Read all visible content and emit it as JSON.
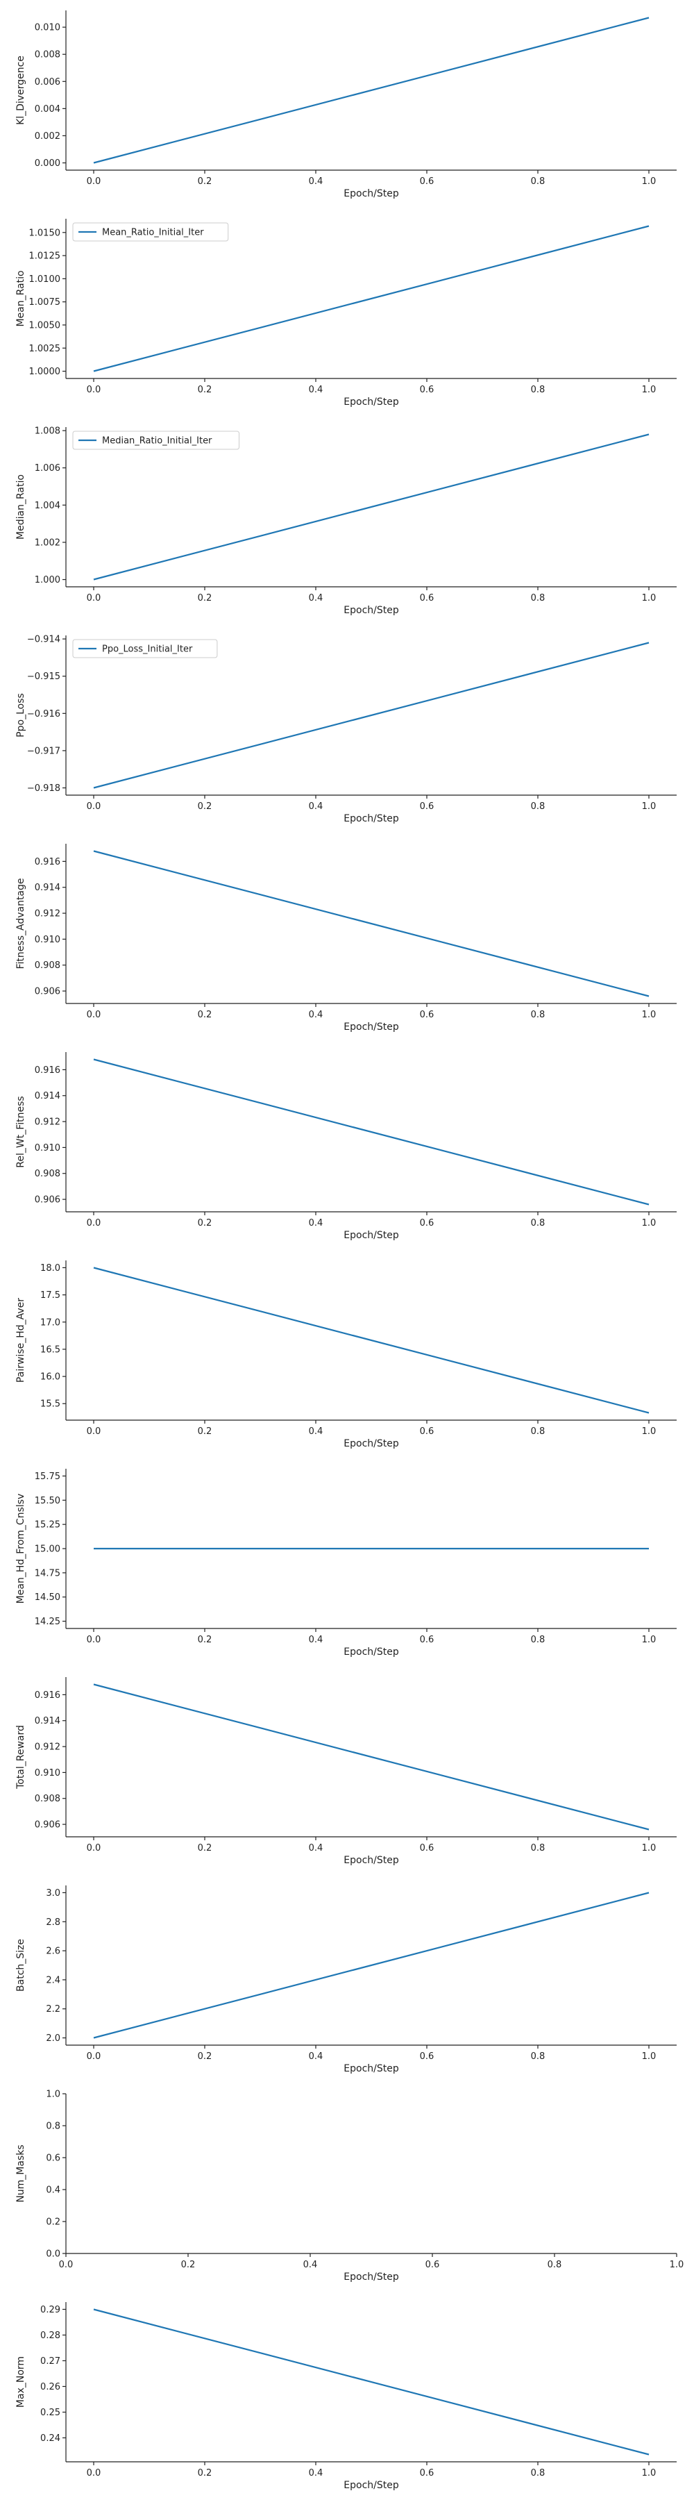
{
  "colors": {
    "series": "#1f77b4",
    "axis": "#222222"
  },
  "chart_data": [
    {
      "type": "line",
      "xlabel": "Epoch/Step",
      "ylabel": "Kl_Divergence",
      "xlim": [
        0.0,
        1.0
      ],
      "ylim": [
        0.0,
        0.0107
      ],
      "x_ticks": [
        "0.0",
        "0.2",
        "0.4",
        "0.6",
        "0.8",
        "1.0"
      ],
      "y_ticks": [
        "0.000",
        "0.002",
        "0.004",
        "0.006",
        "0.008",
        "0.010"
      ],
      "legend": null,
      "series": [
        {
          "x": [
            0.0,
            1.0
          ],
          "y": [
            0.0,
            0.0107
          ]
        }
      ]
    },
    {
      "type": "line",
      "xlabel": "Epoch/Step",
      "ylabel": "Mean_Ratio",
      "xlim": [
        0.0,
        1.0
      ],
      "ylim": [
        1.0,
        1.0157
      ],
      "x_ticks": [
        "0.0",
        "0.2",
        "0.4",
        "0.6",
        "0.8",
        "1.0"
      ],
      "y_ticks": [
        "1.0000",
        "1.0025",
        "1.0050",
        "1.0075",
        "1.0100",
        "1.0125",
        "1.0150"
      ],
      "legend": "upper left",
      "series": [
        {
          "name": "Mean_Ratio_Initial_Iter",
          "x": [
            0.0,
            1.0
          ],
          "y": [
            1.0,
            1.0157
          ]
        }
      ]
    },
    {
      "type": "line",
      "xlabel": "Epoch/Step",
      "ylabel": "Median_Ratio",
      "xlim": [
        0.0,
        1.0
      ],
      "ylim": [
        1.0,
        1.0078
      ],
      "x_ticks": [
        "0.0",
        "0.2",
        "0.4",
        "0.6",
        "0.8",
        "1.0"
      ],
      "y_ticks": [
        "1.000",
        "1.002",
        "1.004",
        "1.006",
        "1.008"
      ],
      "legend": "upper left",
      "series": [
        {
          "name": "Median_Ratio_Initial_Iter",
          "x": [
            0.0,
            1.0
          ],
          "y": [
            1.0,
            1.0078
          ]
        }
      ]
    },
    {
      "type": "line",
      "xlabel": "Epoch/Step",
      "ylabel": "Ppo_Loss",
      "xlim": [
        0.0,
        1.0
      ],
      "ylim": [
        -0.918,
        -0.9141
      ],
      "x_ticks": [
        "0.0",
        "0.2",
        "0.4",
        "0.6",
        "0.8",
        "1.0"
      ],
      "y_ticks": [
        "−0.918",
        "−0.917",
        "−0.916",
        "−0.915",
        "−0.914"
      ],
      "legend": "upper left",
      "series": [
        {
          "name": "Ppo_Loss_Initial_Iter",
          "x": [
            0.0,
            1.0
          ],
          "y": [
            -0.918,
            -0.9141
          ]
        }
      ]
    },
    {
      "type": "line",
      "xlabel": "Epoch/Step",
      "ylabel": "Fitness_Advantage",
      "xlim": [
        0.0,
        1.0
      ],
      "ylim": [
        0.9056,
        0.9168
      ],
      "x_ticks": [
        "0.0",
        "0.2",
        "0.4",
        "0.6",
        "0.8",
        "1.0"
      ],
      "y_ticks": [
        "0.906",
        "0.908",
        "0.910",
        "0.912",
        "0.914",
        "0.916"
      ],
      "legend": null,
      "series": [
        {
          "x": [
            0.0,
            1.0
          ],
          "y": [
            0.9168,
            0.9056
          ]
        }
      ]
    },
    {
      "type": "line",
      "xlabel": "Epoch/Step",
      "ylabel": "Rel_Wt_Fitness",
      "xlim": [
        0.0,
        1.0
      ],
      "ylim": [
        0.9056,
        0.9168
      ],
      "x_ticks": [
        "0.0",
        "0.2",
        "0.4",
        "0.6",
        "0.8",
        "1.0"
      ],
      "y_ticks": [
        "0.906",
        "0.908",
        "0.910",
        "0.912",
        "0.914",
        "0.916"
      ],
      "legend": null,
      "series": [
        {
          "x": [
            0.0,
            1.0
          ],
          "y": [
            0.9168,
            0.9056
          ]
        }
      ]
    },
    {
      "type": "line",
      "xlabel": "Epoch/Step",
      "ylabel": "Pairwise_Hd_Aver",
      "xlim": [
        0.0,
        1.0
      ],
      "ylim": [
        15.33,
        18.0
      ],
      "x_ticks": [
        "0.0",
        "0.2",
        "0.4",
        "0.6",
        "0.8",
        "1.0"
      ],
      "y_ticks": [
        "15.5",
        "16.0",
        "16.5",
        "17.0",
        "17.5",
        "18.0"
      ],
      "legend": null,
      "series": [
        {
          "x": [
            0.0,
            1.0
          ],
          "y": [
            18.0,
            15.33
          ]
        }
      ]
    },
    {
      "type": "line",
      "xlabel": "Epoch/Step",
      "ylabel": "Mean_Hd_From_Cnslsv",
      "xlim": [
        0.0,
        1.0
      ],
      "ylim": [
        14.25,
        15.75
      ],
      "x_ticks": [
        "0.0",
        "0.2",
        "0.4",
        "0.6",
        "0.8",
        "1.0"
      ],
      "y_ticks": [
        "14.25",
        "14.50",
        "14.75",
        "15.00",
        "15.25",
        "15.50",
        "15.75"
      ],
      "legend": null,
      "series": [
        {
          "x": [
            0.0,
            1.0
          ],
          "y": [
            15.0,
            15.0
          ]
        }
      ]
    },
    {
      "type": "line",
      "xlabel": "Epoch/Step",
      "ylabel": "Total_Reward",
      "xlim": [
        0.0,
        1.0
      ],
      "ylim": [
        0.9056,
        0.9168
      ],
      "x_ticks": [
        "0.0",
        "0.2",
        "0.4",
        "0.6",
        "0.8",
        "1.0"
      ],
      "y_ticks": [
        "0.906",
        "0.908",
        "0.910",
        "0.912",
        "0.914",
        "0.916"
      ],
      "legend": null,
      "series": [
        {
          "x": [
            0.0,
            1.0
          ],
          "y": [
            0.9168,
            0.9056
          ]
        }
      ]
    },
    {
      "type": "line",
      "xlabel": "Epoch/Step",
      "ylabel": "Batch_Size",
      "xlim": [
        0.0,
        1.0
      ],
      "ylim": [
        2.0,
        3.0
      ],
      "x_ticks": [
        "0.0",
        "0.2",
        "0.4",
        "0.6",
        "0.8",
        "1.0"
      ],
      "y_ticks": [
        "2.0",
        "2.2",
        "2.4",
        "2.6",
        "2.8",
        "3.0"
      ],
      "legend": null,
      "series": [
        {
          "x": [
            0.0,
            1.0
          ],
          "y": [
            2.0,
            3.0
          ]
        }
      ]
    },
    {
      "type": "line",
      "xlabel": "Epoch/Step",
      "ylabel": "Num_Masks",
      "xlim": [
        0.0,
        1.0
      ],
      "ylim": [
        0.0,
        1.0
      ],
      "x_ticks": [
        "0.0",
        "0.2",
        "0.4",
        "0.6",
        "0.8",
        "1.0"
      ],
      "y_ticks": [
        "0.0",
        "0.2",
        "0.4",
        "0.6",
        "0.8",
        "1.0"
      ],
      "legend": null,
      "series": []
    },
    {
      "type": "line",
      "xlabel": "Epoch/Step",
      "ylabel": "Max_Norm",
      "xlim": [
        0.0,
        1.0
      ],
      "ylim": [
        0.2335,
        0.29
      ],
      "x_ticks": [
        "0.0",
        "0.2",
        "0.4",
        "0.6",
        "0.8",
        "1.0"
      ],
      "y_ticks": [
        "0.24",
        "0.25",
        "0.26",
        "0.27",
        "0.28",
        "0.29"
      ],
      "legend": null,
      "series": [
        {
          "x": [
            0.0,
            1.0
          ],
          "y": [
            0.29,
            0.2335
          ]
        }
      ]
    }
  ]
}
